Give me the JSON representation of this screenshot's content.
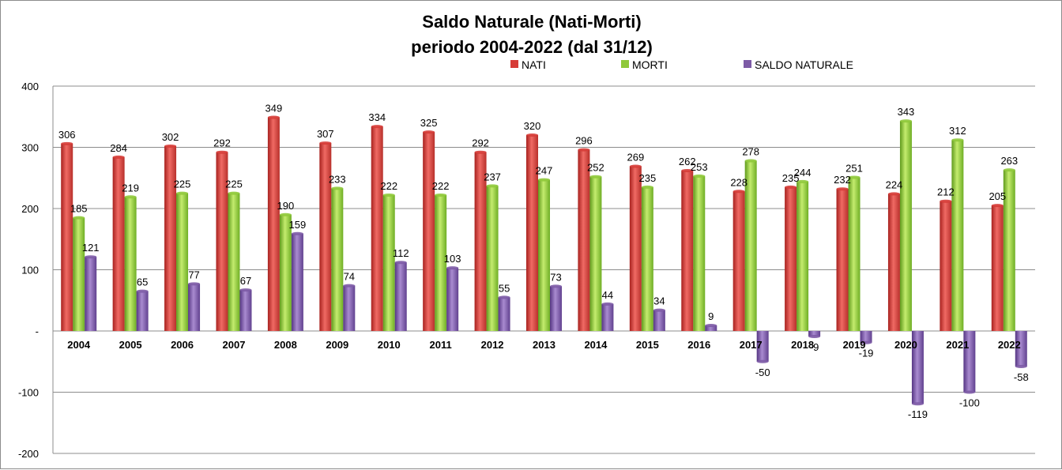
{
  "chart_data": {
    "type": "bar",
    "title": "Saldo Naturale (Nati-Morti)",
    "subtitle": "periodo 2004-2022 (dal 31/12)",
    "categories": [
      "2004",
      "2005",
      "2006",
      "2007",
      "2008",
      "2009",
      "2010",
      "2011",
      "2012",
      "2013",
      "2014",
      "2015",
      "2016",
      "2017",
      "2018",
      "2019",
      "2020",
      "2021",
      "2022"
    ],
    "series": [
      {
        "name": "NATI",
        "color": "#d63c37",
        "values": [
          306,
          284,
          302,
          292,
          349,
          307,
          334,
          325,
          292,
          320,
          296,
          269,
          262,
          228,
          235,
          232,
          224,
          212,
          205
        ]
      },
      {
        "name": "MORTI",
        "color": "#8fc93a",
        "values": [
          185,
          219,
          225,
          225,
          190,
          233,
          222,
          222,
          237,
          247,
          252,
          235,
          253,
          278,
          244,
          251,
          343,
          312,
          263
        ]
      },
      {
        "name": "SALDO NATURALE",
        "color": "#7d5ba6",
        "values": [
          121,
          65,
          77,
          67,
          159,
          74,
          112,
          103,
          55,
          73,
          44,
          34,
          9,
          -50,
          -9,
          -19,
          -119,
          -100,
          -58
        ]
      }
    ],
    "y_ticks": [
      400,
      300,
      200,
      100,
      0,
      -100,
      -200
    ],
    "y_tick_labels": [
      "400",
      "300",
      "200",
      "100",
      "-",
      "-100",
      "-200"
    ],
    "ylim": [
      -200,
      400
    ],
    "xlabel": "",
    "ylabel": "",
    "grid": true,
    "legend_position": "top"
  }
}
